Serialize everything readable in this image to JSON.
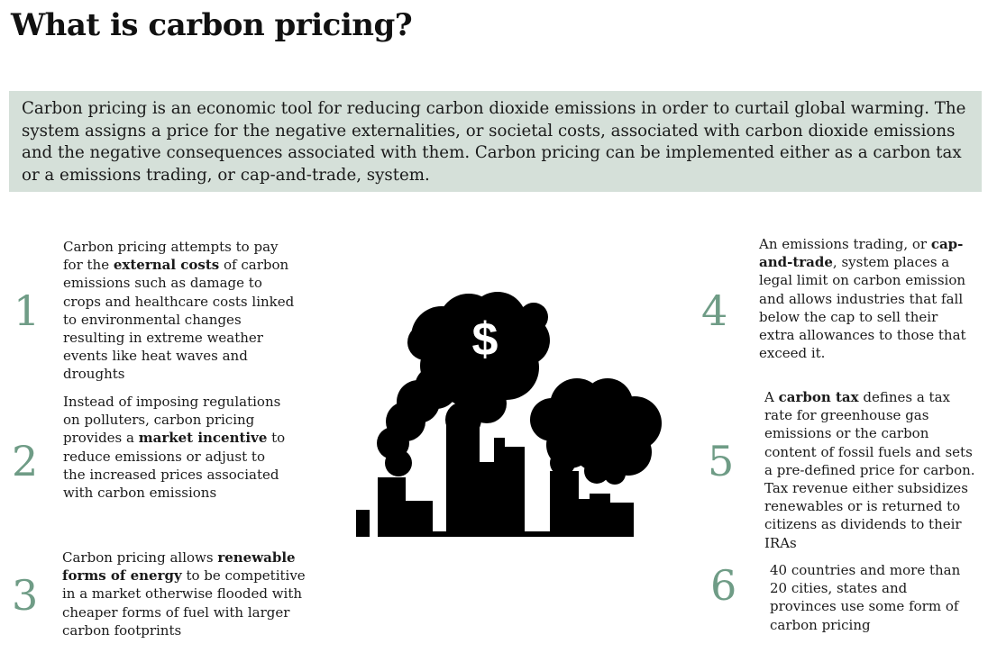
{
  "title": "What is carbon pricing?",
  "intro": "Carbon pricing is an economic tool for reducing carbon dioxide emissions in order to curtail global warming. The system assigns a price for the negative externalities, or societal costs, associated with carbon dioxide emissions and the negative consequences associated with them. Carbon pricing can be implemented either as a carbon tax or a emissions trading, or cap-and-trade, system.",
  "facts": [
    {
      "number": "1",
      "before": "Carbon pricing attempts to pay for the ",
      "bold": "external costs",
      "after": " of carbon emissions such as damage to crops and healthcare costs linked to environmental changes resulting in extreme weather events like heat waves and droughts"
    },
    {
      "number": "2",
      "before": "Instead of imposing regulations on polluters, carbon pricing provides a ",
      "bold": "market incentive",
      "after": " to reduce emissions or adjust to the increased prices associated with carbon emissions"
    },
    {
      "number": "3",
      "before": "Carbon pricing allows ",
      "bold": "renewable forms of energy",
      "after": " to be competitive in a market otherwise flooded with cheaper forms of fuel with larger carbon footprints"
    },
    {
      "number": "4",
      "before": "An emissions trading, or ",
      "bold": "cap-and-trade",
      "after": ", system places a legal limit on carbon emission and allows industries that fall below the cap to sell their extra allowances to those that exceed it."
    },
    {
      "number": "5",
      "before": "A ",
      "bold": "carbon tax",
      "after": " defines a tax rate for greenhouse gas emissions or the carbon content of fossil fuels and sets a pre-defined price for carbon. Tax revenue either subsidizes renewables or is returned to citizens as dividends to their IRAs"
    },
    {
      "number": "6",
      "before": "40 countries and more than 20 cities, states and provinces use some form of carbon pricing",
      "bold": "",
      "after": ""
    }
  ],
  "illustration": {
    "icon": "factory-smoke-dollar-icon",
    "symbol": "$",
    "color": "#000000"
  },
  "colors": {
    "accent_number": "#6f9c86",
    "intro_background": "#d5e0d9"
  }
}
